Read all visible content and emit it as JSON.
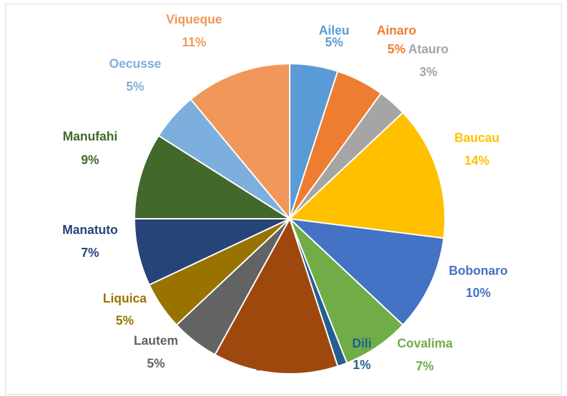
{
  "chart_data": {
    "type": "pie",
    "categories": [
      "Aileu",
      "Ainaro",
      "Atauro",
      "Baucau",
      "Bobonaro",
      "Covalima",
      "Dili",
      "Ermera",
      "Lautem",
      "Liquica",
      "Manatuto",
      "Manufahi",
      "Oecusse",
      "Viqueque"
    ],
    "values": [
      5,
      5,
      3,
      14,
      10,
      7,
      1,
      13,
      5,
      5,
      7,
      9,
      5,
      11
    ],
    "value_labels": [
      "5%",
      "5%",
      "3%",
      "14%",
      "10%",
      "7%",
      "1%",
      "13%",
      "5%",
      "5%",
      "7%",
      "9%",
      "5%",
      "11%"
    ],
    "colors": [
      "#5b9bd5",
      "#ed7d31",
      "#a5a5a5",
      "#ffc000",
      "#4472c4",
      "#70ad47",
      "#255e91",
      "#9e480e",
      "#636363",
      "#997300",
      "#264478",
      "#43682b",
      "#7cafdd",
      "#f1975a"
    ]
  }
}
